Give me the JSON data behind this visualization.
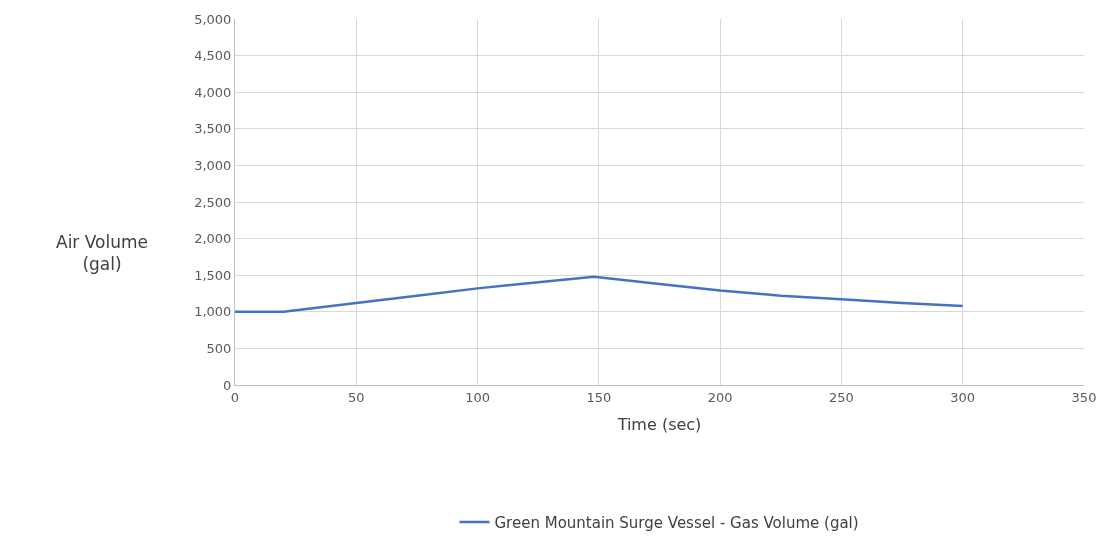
{
  "chart_data": {
    "type": "line",
    "xlabel": "Time (sec)",
    "ylabel": "Air Volume\n(gal)",
    "x": [
      0,
      20,
      50,
      75,
      100,
      148,
      175,
      200,
      225,
      250,
      275,
      300
    ],
    "series": [
      {
        "name": "Green Mountain Surge Vessel - Gas Volume (gal)",
        "color": "#4472c4",
        "values": [
          1000,
          1000,
          1120,
          1220,
          1320,
          1480,
          1380,
          1290,
          1220,
          1170,
          1120,
          1080
        ]
      }
    ],
    "xlim": [
      0,
      350
    ],
    "xticks": [
      0,
      50,
      100,
      150,
      200,
      250,
      300,
      350
    ],
    "ylim": [
      0,
      5000
    ],
    "yticks": [
      {
        "value": 0,
        "label": "0"
      },
      {
        "value": 500,
        "label": "500"
      },
      {
        "value": 1000,
        "label": "1,000"
      },
      {
        "value": 1500,
        "label": "1,500"
      },
      {
        "value": 2000,
        "label": "2,000"
      },
      {
        "value": 2500,
        "label": "2,500"
      },
      {
        "value": 3000,
        "label": "3,000"
      },
      {
        "value": 3500,
        "label": "3,500"
      },
      {
        "value": 4000,
        "label": "4,000"
      },
      {
        "value": 4500,
        "label": "4,500"
      },
      {
        "value": 5000,
        "label": "5,000"
      }
    ],
    "grid": true,
    "legend": "bottom",
    "marker": "none",
    "line_style": "solid"
  }
}
